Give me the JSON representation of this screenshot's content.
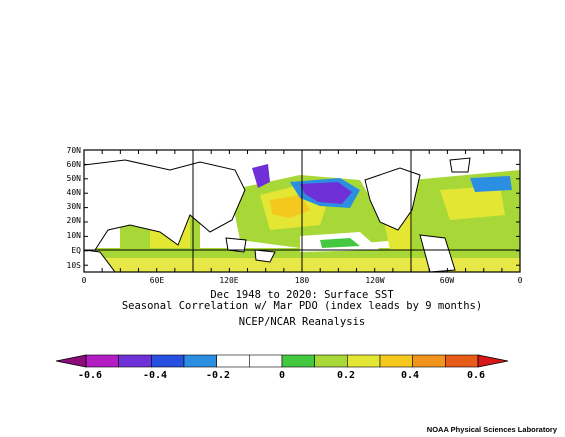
{
  "map": {
    "lat_labels": [
      "70N",
      "60N",
      "50N",
      "40N",
      "30N",
      "20N",
      "10N",
      "EQ",
      "10S"
    ],
    "lon_labels": [
      "0",
      "60E",
      "120E",
      "180",
      "120W",
      "60W",
      "0"
    ],
    "title_line1": "Dec 1948 to 2020: Surface SST",
    "title_line2": "Seasonal Correlation w/ Mar PDO (index leads by 9 months)",
    "dataset": "NCEP/NCAR Reanalysis"
  },
  "colorbar": {
    "tick_labels": [
      "-0.6",
      "-0.4",
      "-0.2",
      "0",
      "0.2",
      "0.4",
      "0.6"
    ],
    "colors": [
      "#8c0c7c",
      "#b41cc4",
      "#7030d8",
      "#2850e0",
      "#2c8ee0",
      "#ffffff",
      "#ffffff",
      "#44c840",
      "#a8d838",
      "#e4e634",
      "#f4c81c",
      "#f0941c",
      "#e85a18",
      "#d81818"
    ]
  },
  "footer": "NOAA Physical Sciences Laboratory"
}
